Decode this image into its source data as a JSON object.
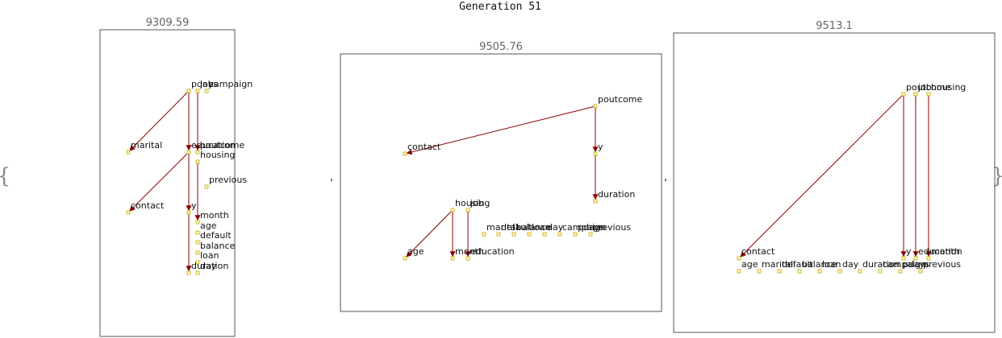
{
  "title": "Generation 51",
  "open_brace": "{",
  "close_brace": "}",
  "separator": ",",
  "colors": {
    "edge": "#8b0000",
    "node_fill": "#fff9c4",
    "node_stroke": "#c9a800",
    "frame": "#555555"
  },
  "panels": [
    {
      "score": "9309.59",
      "nodes": [
        {
          "id": "pdays",
          "label": "pdays"
        },
        {
          "id": "job",
          "label": "job"
        },
        {
          "id": "campaign",
          "label": "campaign"
        },
        {
          "id": "marital",
          "label": "marital"
        },
        {
          "id": "education",
          "label": "education"
        },
        {
          "id": "poutcome",
          "label": "poutcome"
        },
        {
          "id": "housing",
          "label": "housing"
        },
        {
          "id": "previous",
          "label": "previous"
        },
        {
          "id": "contact",
          "label": "contact"
        },
        {
          "id": "y",
          "label": "y"
        },
        {
          "id": "month",
          "label": "month"
        },
        {
          "id": "age",
          "label": "age"
        },
        {
          "id": "default",
          "label": "default"
        },
        {
          "id": "balance",
          "label": "balance"
        },
        {
          "id": "loan",
          "label": "loan"
        },
        {
          "id": "day",
          "label": "day"
        },
        {
          "id": "duration",
          "label": "duration"
        }
      ],
      "edges": [
        [
          "pdays",
          "marital"
        ],
        [
          "pdays",
          "education"
        ],
        [
          "job",
          "poutcome"
        ],
        [
          "education",
          "contact"
        ],
        [
          "education",
          "y"
        ],
        [
          "y",
          "duration"
        ],
        [
          "housing",
          "month"
        ]
      ]
    },
    {
      "score": "9505.76",
      "nodes": [
        {
          "id": "poutcome",
          "label": "poutcome"
        },
        {
          "id": "contact",
          "label": "contact"
        },
        {
          "id": "y",
          "label": "y"
        },
        {
          "id": "duration",
          "label": "duration"
        },
        {
          "id": "housing",
          "label": "housing"
        },
        {
          "id": "job",
          "label": "job"
        },
        {
          "id": "marital",
          "label": "marital"
        },
        {
          "id": "default",
          "label": "default"
        },
        {
          "id": "balance",
          "label": "balance"
        },
        {
          "id": "loan",
          "label": "loan"
        },
        {
          "id": "day",
          "label": "day"
        },
        {
          "id": "campaign",
          "label": "campaign"
        },
        {
          "id": "pdays",
          "label": "pdays"
        },
        {
          "id": "previous",
          "label": "previous"
        },
        {
          "id": "age",
          "label": "age"
        },
        {
          "id": "month",
          "label": "month"
        },
        {
          "id": "education",
          "label": "education"
        }
      ],
      "edges": [
        [
          "poutcome",
          "contact"
        ],
        [
          "poutcome",
          "y"
        ],
        [
          "y",
          "duration"
        ],
        [
          "housing",
          "age"
        ],
        [
          "housing",
          "month"
        ],
        [
          "job",
          "education"
        ]
      ]
    },
    {
      "score": "9513.1",
      "nodes": [
        {
          "id": "poutcome",
          "label": "poutcome"
        },
        {
          "id": "job",
          "label": "job"
        },
        {
          "id": "housing",
          "label": "housing"
        },
        {
          "id": "contact",
          "label": "contact"
        },
        {
          "id": "y",
          "label": "y"
        },
        {
          "id": "education",
          "label": "education"
        },
        {
          "id": "month",
          "label": "month"
        },
        {
          "id": "age",
          "label": "age"
        },
        {
          "id": "marital",
          "label": "marital"
        },
        {
          "id": "default",
          "label": "default"
        },
        {
          "id": "balance",
          "label": "balance"
        },
        {
          "id": "loan",
          "label": "loan"
        },
        {
          "id": "day",
          "label": "day"
        },
        {
          "id": "duration",
          "label": "duration"
        },
        {
          "id": "campaign",
          "label": "campaign"
        },
        {
          "id": "pdays",
          "label": "pdays"
        },
        {
          "id": "previous",
          "label": "previous"
        }
      ],
      "edges": [
        [
          "poutcome",
          "contact"
        ],
        [
          "poutcome",
          "y"
        ],
        [
          "job",
          "education"
        ],
        [
          "housing",
          "month"
        ]
      ]
    }
  ]
}
